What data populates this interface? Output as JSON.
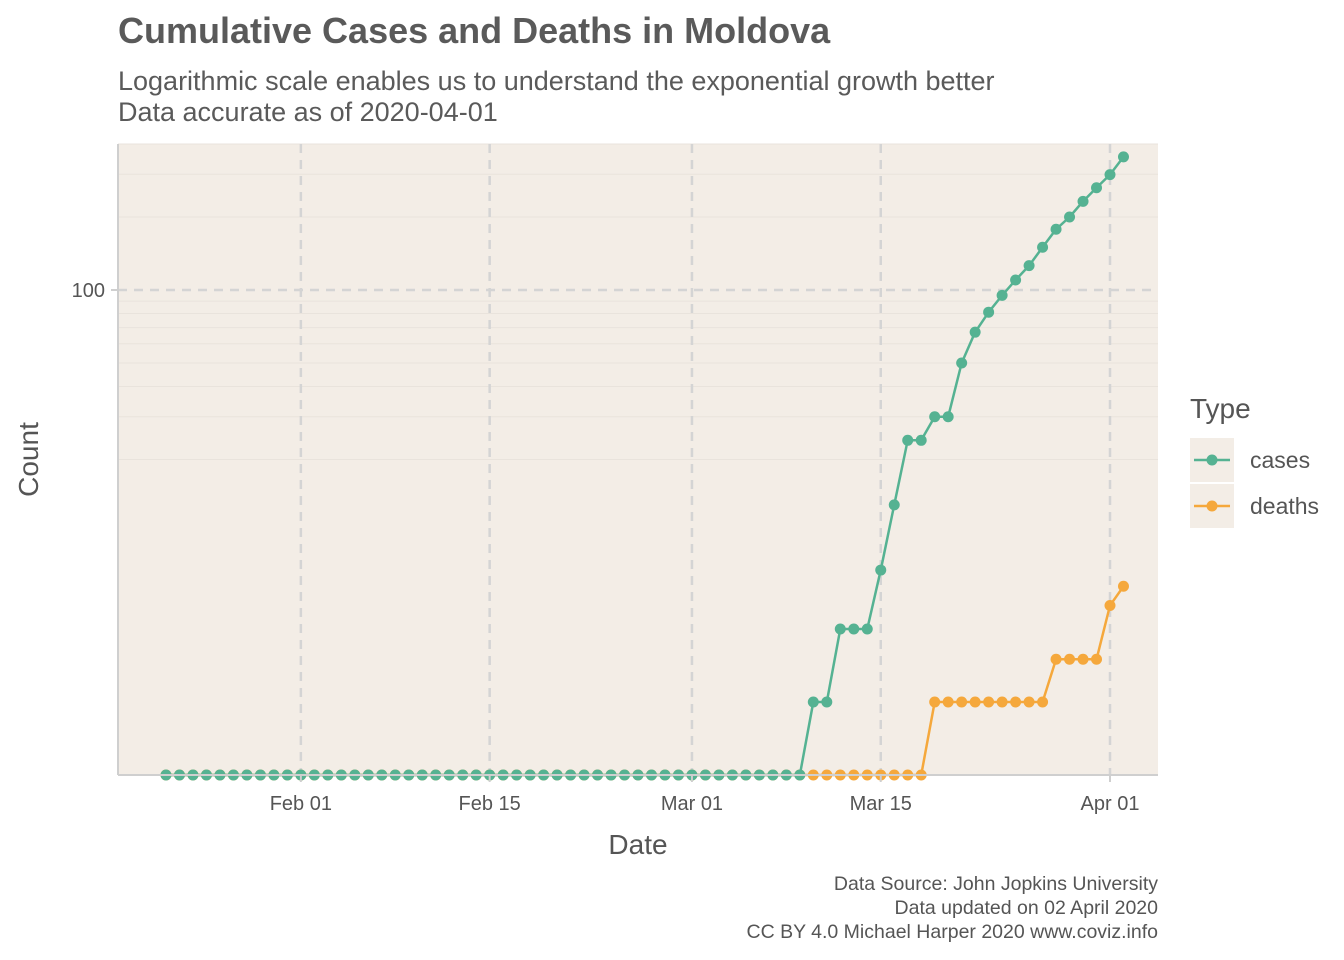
{
  "chart_data": {
    "type": "line",
    "title": "Cumulative Cases and Deaths in Moldova",
    "subtitle": [
      "Logarithmic scale enables us to understand the exponential growth better",
      "Data accurate as of 2020-04-01"
    ],
    "xlabel": "Date",
    "ylabel": "Count",
    "y_scale": "log10",
    "x_start_date": "2020-01-22",
    "x_end_date": "2020-04-01",
    "x_ticks": [
      {
        "date": "2020-02-01",
        "label": "Feb 01"
      },
      {
        "date": "2020-02-15",
        "label": "Feb 15"
      },
      {
        "date": "2020-03-01",
        "label": "Mar 01"
      },
      {
        "date": "2020-03-15",
        "label": "Mar 15"
      },
      {
        "date": "2020-04-01",
        "label": "Apr 01"
      }
    ],
    "y_ticks": [
      {
        "value": 100,
        "label": "100"
      }
    ],
    "grid": true,
    "legend": {
      "title": "Type",
      "position": "right"
    },
    "background_color": "#f3ede6",
    "series": [
      {
        "name": "cases",
        "color": "#55b292",
        "values": [
          0,
          0,
          0,
          0,
          0,
          0,
          0,
          0,
          0,
          0,
          0,
          0,
          0,
          0,
          0,
          0,
          0,
          0,
          0,
          0,
          0,
          0,
          0,
          0,
          0,
          0,
          0,
          0,
          0,
          0,
          0,
          0,
          0,
          0,
          0,
          0,
          0,
          0,
          0,
          0,
          0,
          0,
          0,
          0,
          0,
          0,
          0,
          0,
          1,
          1,
          3,
          3,
          3,
          6,
          12,
          23,
          23,
          29,
          29,
          49,
          66,
          80,
          94,
          109,
          125,
          149,
          177,
          199,
          231,
          263,
          298,
          353
        ]
      },
      {
        "name": "deaths",
        "color": "#f5a83c",
        "values": [
          0,
          0,
          0,
          0,
          0,
          0,
          0,
          0,
          0,
          0,
          0,
          0,
          0,
          0,
          0,
          0,
          0,
          0,
          0,
          0,
          0,
          0,
          0,
          0,
          0,
          0,
          0,
          0,
          0,
          0,
          0,
          0,
          0,
          0,
          0,
          0,
          0,
          0,
          0,
          0,
          0,
          0,
          0,
          0,
          0,
          0,
          0,
          0,
          0,
          0,
          0,
          0,
          0,
          0,
          0,
          0,
          0,
          1,
          1,
          1,
          1,
          1,
          1,
          1,
          1,
          1,
          2,
          2,
          2,
          2,
          4,
          5
        ]
      }
    ]
  },
  "caption": {
    "line1": "Data Source: John Jopkins University",
    "line2": "Data updated on 02 April 2020",
    "line3": "CC BY 4.0 Michael Harper 2020 www.coviz.info"
  }
}
